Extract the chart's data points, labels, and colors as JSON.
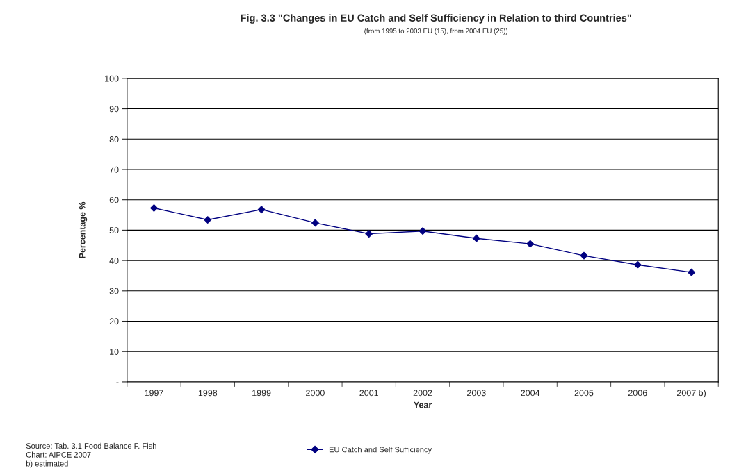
{
  "chart_data": {
    "type": "line",
    "title": "Fig. 3.3 \"Changes in EU Catch and Self Sufficiency in Relation to third Countries\"",
    "subtitle": "(from 1995 to 2003 EU (15), from 2004 EU (25))",
    "xlabel": "Year",
    "ylabel": "Percentage %",
    "categories": [
      "1997",
      "1998",
      "1999",
      "2000",
      "2001",
      "2002",
      "2003",
      "2004",
      "2005",
      "2006",
      "2007 b)"
    ],
    "series": [
      {
        "name": "EU Catch and Self Sufficiency",
        "color": "#000080",
        "values": [
          57.3,
          53.4,
          56.8,
          52.4,
          48.8,
          49.7,
          47.3,
          45.5,
          41.6,
          38.6,
          36.1
        ]
      }
    ],
    "ylim": [
      0,
      100
    ],
    "yticks": [
      {
        "value": 0,
        "label": "-"
      },
      10,
      20,
      30,
      40,
      50,
      60,
      70,
      80,
      90,
      100
    ],
    "grid": "y",
    "legend": "bottom",
    "marker": "diamond",
    "line_style": "solid",
    "annotations": [
      "Source: Tab. 3.1 Food Balance F. Fish\nChart: AIPCE 2007\nb) estimated"
    ]
  }
}
